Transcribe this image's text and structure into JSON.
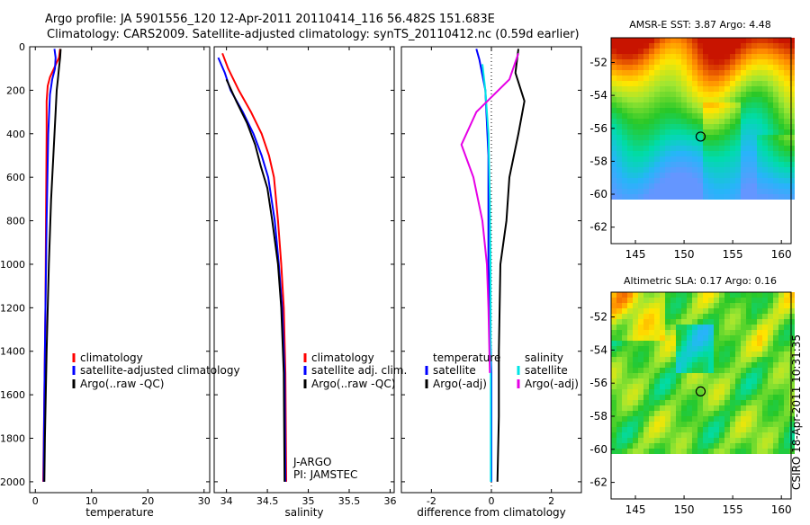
{
  "title": {
    "line1": "Argo profile: JA 5901556_120 12-Apr-2011 20110414_116 56.482S 151.683E",
    "line2": "Climatology: CARS2009. Satellite-adjusted climatology: synTS_20110412.nc (0.59d earlier)"
  },
  "side_label": "CSIRO 18-Apr-2011 10:31:35",
  "colors": {
    "climatology": "#ff0000",
    "satellite": "#0000ff",
    "argo": "#000000",
    "salinity_satellite": "#00e5e5",
    "salinity_argo": "#e600e6"
  },
  "chart_data": [
    {
      "type": "line",
      "panel": "temperature",
      "xlabel": "temperature",
      "ylabel": "",
      "xlim": [
        -1,
        31
      ],
      "ylim": [
        2050,
        0
      ],
      "xticks": [
        "0",
        "10",
        "20",
        "30"
      ],
      "yticks": [
        "0",
        "200",
        "400",
        "600",
        "800",
        "1000",
        "1200",
        "1400",
        "1600",
        "1800",
        "2000"
      ],
      "legend": [
        "climatology",
        "satellite-adjusted climatology",
        "Argo(..raw -QC)"
      ],
      "series": [
        {
          "name": "climatology",
          "points": [
            [
              4.4,
              10
            ],
            [
              4.2,
              50
            ],
            [
              3.5,
              90
            ],
            [
              2.6,
              140
            ],
            [
              2.2,
              180
            ],
            [
              2.0,
              250
            ],
            [
              2.0,
              400
            ],
            [
              1.9,
              800
            ],
            [
              1.8,
              1200
            ],
            [
              1.6,
              1600
            ],
            [
              1.4,
              2000
            ]
          ]
        },
        {
          "name": "satellite-adjusted climatology",
          "points": [
            [
              3.4,
              10
            ],
            [
              3.6,
              50
            ],
            [
              3.5,
              100
            ],
            [
              3.0,
              150
            ],
            [
              2.6,
              220
            ],
            [
              2.3,
              400
            ],
            [
              2.0,
              800
            ],
            [
              1.8,
              1200
            ],
            [
              1.6,
              1600
            ],
            [
              1.5,
              1900
            ],
            [
              1.5,
              2000
            ]
          ]
        },
        {
          "name": "Argo(..raw -QC)",
          "points": [
            [
              4.5,
              10
            ],
            [
              4.4,
              50
            ],
            [
              4.2,
              100
            ],
            [
              4.0,
              150
            ],
            [
              3.8,
              200
            ],
            [
              3.6,
              300
            ],
            [
              3.2,
              500
            ],
            [
              2.8,
              700
            ],
            [
              2.4,
              1000
            ],
            [
              2.0,
              1400
            ],
            [
              1.7,
              1800
            ],
            [
              1.6,
              2000
            ]
          ]
        }
      ]
    },
    {
      "type": "line",
      "panel": "salinity",
      "xlabel": "salinity",
      "ylabel": "",
      "xlim": [
        33.85,
        36.05
      ],
      "ylim": [
        2050,
        0
      ],
      "xticks": [
        "34",
        "34.5",
        "35",
        "35.5",
        "36"
      ],
      "legend": [
        "climatology",
        "satellite adj. clim.",
        "Argo(..raw -QC)"
      ],
      "annotation": [
        "J-ARGO",
        "PI: JAMSTEC"
      ],
      "series": [
        {
          "name": "climatology",
          "points": [
            [
              33.95,
              30
            ],
            [
              34.02,
              100
            ],
            [
              34.15,
              200
            ],
            [
              34.3,
              300
            ],
            [
              34.43,
              400
            ],
            [
              34.52,
              500
            ],
            [
              34.58,
              600
            ],
            [
              34.63,
              800
            ],
            [
              34.67,
              1000
            ],
            [
              34.7,
              1200
            ],
            [
              34.72,
              1500
            ],
            [
              34.73,
              2000
            ]
          ]
        },
        {
          "name": "satellite adj. clim.",
          "points": [
            [
              33.9,
              50
            ],
            [
              33.98,
              120
            ],
            [
              34.05,
              200
            ],
            [
              34.2,
              300
            ],
            [
              34.33,
              400
            ],
            [
              34.43,
              500
            ],
            [
              34.51,
              600
            ],
            [
              34.59,
              800
            ],
            [
              34.64,
              1000
            ],
            [
              34.68,
              1200
            ],
            [
              34.71,
              1500
            ],
            [
              34.72,
              2000
            ]
          ]
        },
        {
          "name": "Argo(..raw -QC)",
          "points": [
            [
              34.0,
              150
            ],
            [
              34.12,
              250
            ],
            [
              34.25,
              350
            ],
            [
              34.35,
              450
            ],
            [
              34.42,
              550
            ],
            [
              34.5,
              650
            ],
            [
              34.56,
              800
            ],
            [
              34.63,
              1000
            ],
            [
              34.67,
              1200
            ],
            [
              34.7,
              1500
            ],
            [
              34.71,
              2000
            ]
          ]
        }
      ]
    },
    {
      "type": "line",
      "panel": "difference",
      "xlabel": "difference from climatology",
      "ylabel": "",
      "xlim": [
        -3.0,
        3.0
      ],
      "ylim": [
        2050,
        0
      ],
      "xticks": [
        "-2",
        "0",
        "2"
      ],
      "legend_temperature": [
        "temperature",
        "satellite",
        "Argo(-adj)"
      ],
      "legend_salinity": [
        "salinity",
        "satellite",
        "Argo(-adj)"
      ],
      "series": [
        {
          "name": "temperature satellite",
          "points": [
            [
              -0.5,
              10
            ],
            [
              -0.4,
              60
            ],
            [
              -0.2,
              200
            ],
            [
              -0.1,
              500
            ],
            [
              -0.1,
              1000
            ],
            [
              0.0,
              1500
            ],
            [
              0.0,
              2000
            ]
          ]
        },
        {
          "name": "temperature Argo(-adj)",
          "points": [
            [
              0.9,
              10
            ],
            [
              0.8,
              120
            ],
            [
              1.1,
              250
            ],
            [
              0.9,
              400
            ],
            [
              0.6,
              600
            ],
            [
              0.5,
              800
            ],
            [
              0.3,
              1000
            ],
            [
              0.25,
              1400
            ],
            [
              0.25,
              1700
            ],
            [
              0.2,
              2000
            ]
          ]
        },
        {
          "name": "salinity satellite",
          "points": [
            [
              -0.3,
              80
            ],
            [
              -0.2,
              200
            ],
            [
              -0.1,
              400
            ],
            [
              -0.05,
              700
            ],
            [
              -0.03,
              1000
            ],
            [
              -0.02,
              1500
            ],
            [
              -0.02,
              2000
            ]
          ]
        },
        {
          "name": "salinity Argo(-adj)",
          "points": [
            [
              0.9,
              30
            ],
            [
              0.6,
              150
            ],
            [
              -0.5,
              300
            ],
            [
              -1.0,
              450
            ],
            [
              -0.6,
              600
            ],
            [
              -0.3,
              800
            ],
            [
              -0.15,
              1000
            ],
            [
              -0.1,
              1200
            ],
            [
              -0.05,
              1500
            ]
          ]
        }
      ]
    },
    {
      "type": "heatmap",
      "panel": "sst",
      "title": "AMSR-E SST: 3.87 Argo: 4.48",
      "xlim": [
        142.5,
        161
      ],
      "ylim": [
        -63,
        -50.5
      ],
      "xticks": [
        "145",
        "150",
        "155",
        "160"
      ],
      "yticks": [
        "-52",
        "-54",
        "-56",
        "-58",
        "-60",
        "-62"
      ],
      "marker": {
        "lon": 151.7,
        "lat": -56.5
      }
    },
    {
      "type": "heatmap",
      "panel": "sla",
      "title": "Altimetric SLA: 0.17 Argo: 0.16",
      "xlim": [
        142.5,
        161
      ],
      "ylim": [
        -63,
        -50.5
      ],
      "xticks": [
        "145",
        "150",
        "155",
        "160"
      ],
      "yticks": [
        "-52",
        "-54",
        "-56",
        "-58",
        "-60",
        "-62"
      ],
      "marker": {
        "lon": 151.7,
        "lat": -56.5
      }
    }
  ]
}
